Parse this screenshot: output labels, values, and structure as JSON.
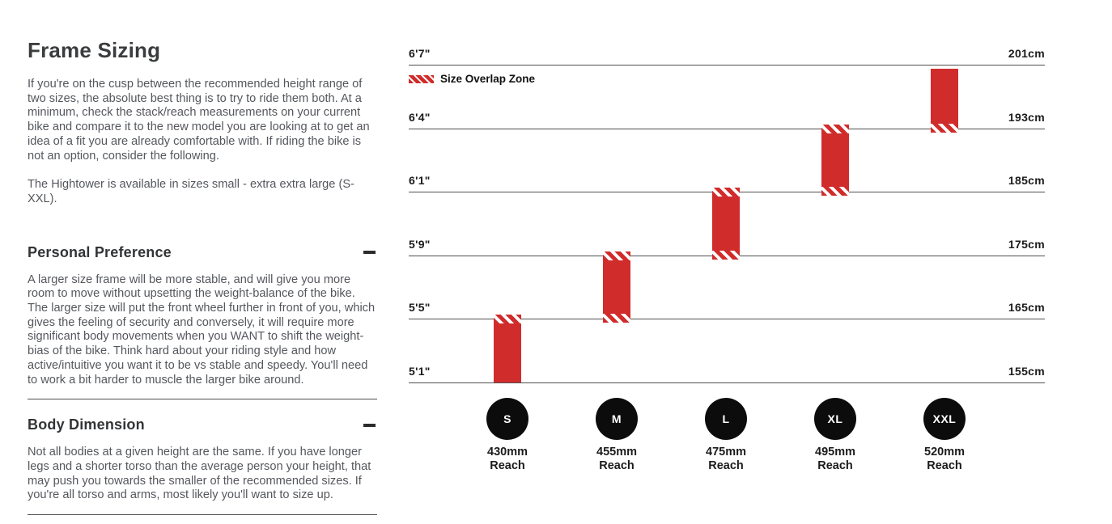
{
  "page": {
    "title": "Frame Sizing",
    "intro": "If you're on the cusp between the recommended height range of two sizes, the absolute best thing is to try to ride them both. At a minimum, check the stack/reach measurements on your current bike and compare it to the new model you are looking at to get an idea of a fit you are already comfortable with. If riding the bike is not an option, consider the following.",
    "availability": "The Hightower is available in sizes small - extra extra large (S-XXL)."
  },
  "sections": [
    {
      "heading": "Personal Preference",
      "collapse_icon": "minus",
      "body": "A larger size frame will be more stable, and will give you more room to move without upsetting the weight-balance of the bike. The larger size will put the front wheel further in front of you, which gives the feeling of security and conversely, it will require more significant body movements when you WANT to shift the weight-bias of the bike. Think hard about your riding style and how active/intuitive you want it to be vs stable and speedy. You'll need to work a bit harder to muscle the larger bike around."
    },
    {
      "heading": "Body Dimension",
      "collapse_icon": "minus",
      "body": "Not all bodies at a given height are the same. If you have longer legs and a shorter torso than the average person your height, that may push you towards the smaller of the recommended sizes. If you're all torso and arms, most likely you'll want to size up."
    }
  ],
  "chart_data": {
    "type": "range_bar",
    "title": "",
    "legend": {
      "label": "Size Overlap Zone"
    },
    "rows": [
      {
        "height": "6'7\"",
        "cm": "201cm"
      },
      {
        "height": "6'4\"",
        "cm": "193cm"
      },
      {
        "height": "6'1\"",
        "cm": "185cm"
      },
      {
        "height": "5'9\"",
        "cm": "175cm"
      },
      {
        "height": "5'5\"",
        "cm": "165cm"
      },
      {
        "height": "5'1\"",
        "cm": "155cm"
      }
    ],
    "sizes": [
      {
        "label": "S",
        "reach": "430mm",
        "reach_caption": "Reach",
        "height_range": [
          "5'1\"",
          "5'5\""
        ],
        "cm_range": [
          155,
          165
        ],
        "upper_row": 4,
        "lower_row": 5,
        "overlap_top": true,
        "overlap_bottom": false
      },
      {
        "label": "M",
        "reach": "455mm",
        "reach_caption": "Reach",
        "height_range": [
          "5'5\"",
          "5'9\""
        ],
        "cm_range": [
          165,
          175
        ],
        "upper_row": 3,
        "lower_row": 4,
        "overlap_top": true,
        "overlap_bottom": true
      },
      {
        "label": "L",
        "reach": "475mm",
        "reach_caption": "Reach",
        "height_range": [
          "5'9\"",
          "6'1\""
        ],
        "cm_range": [
          175,
          185
        ],
        "upper_row": 2,
        "lower_row": 3,
        "overlap_top": true,
        "overlap_bottom": true
      },
      {
        "label": "XL",
        "reach": "495mm",
        "reach_caption": "Reach",
        "height_range": [
          "6'1\"",
          "6'4\""
        ],
        "cm_range": [
          185,
          193
        ],
        "upper_row": 1,
        "lower_row": 2,
        "overlap_top": true,
        "overlap_bottom": true
      },
      {
        "label": "XXL",
        "reach": "520mm",
        "reach_caption": "Reach",
        "height_range": [
          "6'4\"",
          "6'7\""
        ],
        "cm_range": [
          193,
          201
        ],
        "upper_row": 0,
        "lower_row": 1,
        "overlap_top": false,
        "overlap_bottom": true
      }
    ],
    "colors": {
      "bar": "#d12c2c",
      "line": "#4f4f4f",
      "badge": "#0c0c0c",
      "label": "#1b1b1b"
    }
  }
}
